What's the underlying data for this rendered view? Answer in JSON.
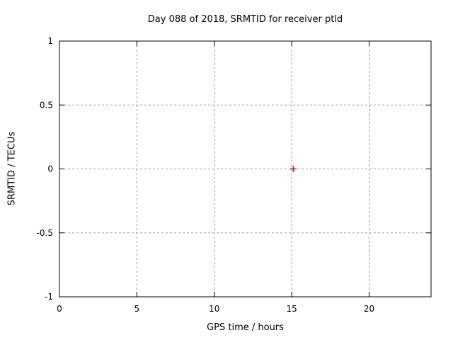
{
  "chart_data": {
    "type": "scatter",
    "title": "Day 088 of 2018, SRMTID for receiver ptld",
    "xlabel": "GPS time / hours",
    "ylabel": "SRMTID / TECUs",
    "xlim": [
      0,
      24
    ],
    "ylim": [
      -1,
      1
    ],
    "xticks": [
      0,
      5,
      10,
      15,
      20
    ],
    "yticks": [
      1,
      0.5,
      0,
      -0.5,
      -1
    ],
    "grid": true,
    "legend": "none",
    "series": [
      {
        "name": "SRMTID",
        "marker": "plus",
        "color": "#ff0000",
        "points": [
          {
            "x": 15.1,
            "y": 0.0
          }
        ]
      }
    ],
    "colors": {
      "background": "#ffffff",
      "border": "#000000",
      "grid": "#9b9b9b",
      "text": "#000000",
      "marker": "#ff0000"
    }
  }
}
